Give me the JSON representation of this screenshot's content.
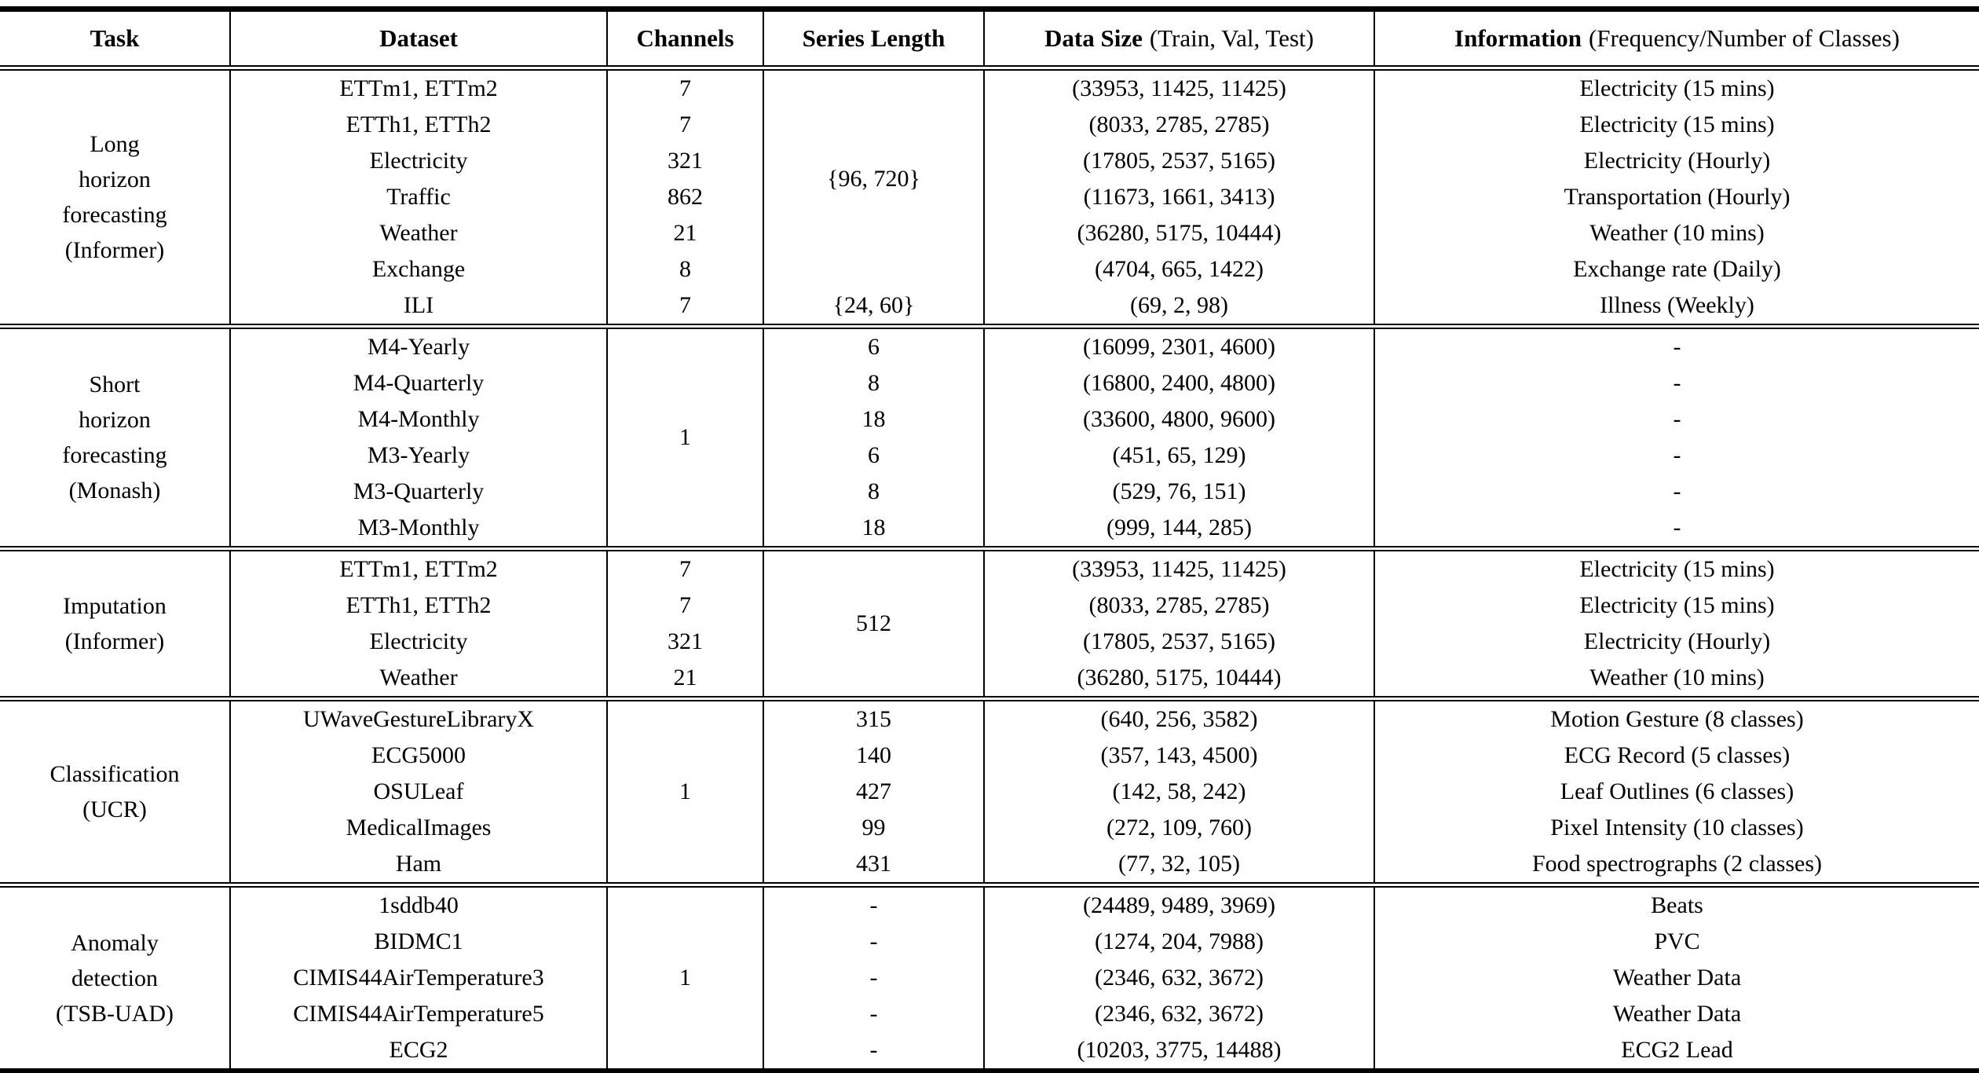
{
  "table": {
    "header": {
      "task": "Task",
      "dataset": "Dataset",
      "channels": "Channels",
      "series_length": "Series Length",
      "data_size": "Data Size",
      "data_size_note": "(Train, Val, Test)",
      "information": "Information",
      "information_note": "(Frequency/Number of Classes)"
    },
    "sections": [
      {
        "task": "Long\nhorizon\nforecasting\n(Informer)",
        "series_length_merged": "{96, 720}",
        "rows": [
          {
            "dataset": "ETTm1, ETTm2",
            "channels": "7",
            "data_size": "(33953, 11425, 11425)",
            "information": "Electricity (15 mins)"
          },
          {
            "dataset": "ETTh1, ETTh2",
            "channels": "7",
            "data_size": "(8033, 2785, 2785)",
            "information": "Electricity (15 mins)"
          },
          {
            "dataset": "Electricity",
            "channels": "321",
            "data_size": "(17805, 2537, 5165)",
            "information": "Electricity (Hourly)"
          },
          {
            "dataset": "Traffic",
            "channels": "862",
            "data_size": "(11673, 1661, 3413)",
            "information": "Transportation (Hourly)"
          },
          {
            "dataset": "Weather",
            "channels": "21",
            "data_size": "(36280, 5175, 10444)",
            "information": "Weather (10 mins)"
          },
          {
            "dataset": "Exchange",
            "channels": "8",
            "data_size": "(4704, 665, 1422)",
            "information": "Exchange rate (Daily)"
          },
          {
            "dataset": "ILI",
            "channels": "7",
            "series_length": "{24, 60}",
            "data_size": "(69, 2, 98)",
            "information": "Illness (Weekly)"
          }
        ]
      },
      {
        "task": "Short\nhorizon\nforecasting\n(Monash)",
        "channels_merged": "1",
        "rows": [
          {
            "dataset": "M4-Yearly",
            "series_length": "6",
            "data_size": "(16099, 2301, 4600)",
            "information": "-"
          },
          {
            "dataset": "M4-Quarterly",
            "series_length": "8",
            "data_size": "(16800, 2400, 4800)",
            "information": "-"
          },
          {
            "dataset": "M4-Monthly",
            "series_length": "18",
            "data_size": "(33600, 4800, 9600)",
            "information": "-"
          },
          {
            "dataset": "M3-Yearly",
            "series_length": "6",
            "data_size": "(451, 65, 129)",
            "information": "-"
          },
          {
            "dataset": "M3-Quarterly",
            "series_length": "8",
            "data_size": "(529, 76, 151)",
            "information": "-"
          },
          {
            "dataset": "M3-Monthly",
            "series_length": "18",
            "data_size": "(999, 144, 285)",
            "information": "-"
          }
        ]
      },
      {
        "task": "Imputation\n(Informer)",
        "series_length_merged": "512",
        "rows": [
          {
            "dataset": "ETTm1, ETTm2",
            "channels": "7",
            "data_size": "(33953, 11425, 11425)",
            "information": "Electricity (15 mins)"
          },
          {
            "dataset": "ETTh1, ETTh2",
            "channels": "7",
            "data_size": "(8033, 2785, 2785)",
            "information": "Electricity (15 mins)"
          },
          {
            "dataset": "Electricity",
            "channels": "321",
            "data_size": "(17805, 2537, 5165)",
            "information": "Electricity (Hourly)"
          },
          {
            "dataset": "Weather",
            "channels": "21",
            "data_size": "(36280, 5175, 10444)",
            "information": "Weather (10 mins)"
          }
        ]
      },
      {
        "task": "Classification\n(UCR)",
        "channels_merged": "1",
        "rows": [
          {
            "dataset": "UWaveGestureLibraryX",
            "series_length": "315",
            "data_size": "(640, 256, 3582)",
            "information": "Motion Gesture (8 classes)"
          },
          {
            "dataset": "ECG5000",
            "series_length": "140",
            "data_size": "(357, 143, 4500)",
            "information": "ECG Record (5 classes)"
          },
          {
            "dataset": "OSULeaf",
            "series_length": "427",
            "data_size": "(142, 58, 242)",
            "information": "Leaf Outlines (6 classes)"
          },
          {
            "dataset": "MedicalImages",
            "series_length": "99",
            "data_size": "(272, 109, 760)",
            "information": "Pixel Intensity (10 classes)"
          },
          {
            "dataset": "Ham",
            "series_length": "431",
            "data_size": "(77, 32, 105)",
            "information": "Food spectrographs (2 classes)"
          }
        ]
      },
      {
        "task": "Anomaly\ndetection\n(TSB-UAD)",
        "channels_merged": "1",
        "rows": [
          {
            "dataset": "1sddb40",
            "series_length": "-",
            "data_size": "(24489, 9489, 3969)",
            "information": "Beats"
          },
          {
            "dataset": "BIDMC1",
            "series_length": "-",
            "data_size": "(1274, 204, 7988)",
            "information": "PVC"
          },
          {
            "dataset": "CIMIS44AirTemperature3",
            "series_length": "-",
            "data_size": "(2346, 632, 3672)",
            "information": "Weather Data"
          },
          {
            "dataset": "CIMIS44AirTemperature5",
            "series_length": "-",
            "data_size": "(2346, 632, 3672)",
            "information": "Weather Data"
          },
          {
            "dataset": "ECG2",
            "series_length": "-",
            "data_size": "(10203, 3775, 14488)",
            "information": "ECG2 Lead"
          }
        ]
      }
    ]
  }
}
